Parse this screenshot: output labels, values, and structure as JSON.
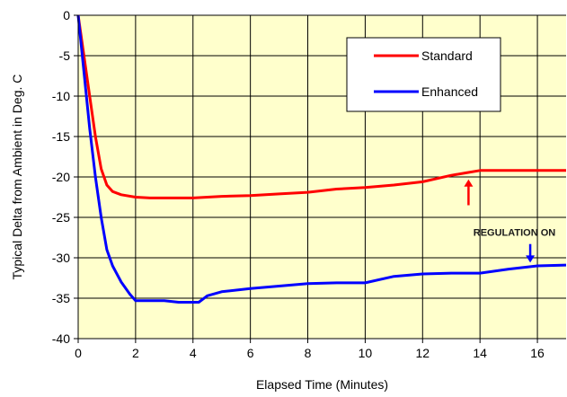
{
  "chart_data": {
    "type": "line",
    "xlabel": "Elapsed Time (Minutes)",
    "ylabel": "Typical Delta from Ambient in Deg. C",
    "xlim": [
      0,
      17
    ],
    "ylim": [
      -40,
      0
    ],
    "x_ticks": [
      0,
      2,
      4,
      6,
      8,
      10,
      12,
      14,
      16
    ],
    "y_ticks": [
      0,
      -5,
      -10,
      -15,
      -20,
      -25,
      -30,
      -35,
      -40
    ],
    "grid": true,
    "legend_position": "top-right",
    "plot_background": "#ffffcc",
    "series": [
      {
        "name": "Standard",
        "color": "#ff0000",
        "x": [
          0,
          0.2,
          0.4,
          0.6,
          0.8,
          1.0,
          1.2,
          1.5,
          2.0,
          2.5,
          3.0,
          4.0,
          5.0,
          6.0,
          7.0,
          8.0,
          9.0,
          10.0,
          11.0,
          12.0,
          13.0,
          13.5,
          14.0,
          15.0,
          16.0,
          17.0
        ],
        "values": [
          0,
          -5,
          -10,
          -15,
          -19,
          -21,
          -21.8,
          -22.2,
          -22.5,
          -22.6,
          -22.6,
          -22.6,
          -22.4,
          -22.3,
          -22.1,
          -21.9,
          -21.5,
          -21.3,
          -21,
          -20.6,
          -19.8,
          -19.5,
          -19.2,
          -19.2,
          -19.2,
          -19.2
        ]
      },
      {
        "name": "Enhanced",
        "color": "#0000ff",
        "x": [
          0,
          0.2,
          0.4,
          0.6,
          0.8,
          1.0,
          1.2,
          1.5,
          1.8,
          2.0,
          2.5,
          3.0,
          3.5,
          4.0,
          4.2,
          4.5,
          5.0,
          6.0,
          7.0,
          8.0,
          9.0,
          10.0,
          11.0,
          12.0,
          13.0,
          14.0,
          15.0,
          16.0,
          17.0
        ],
        "values": [
          0,
          -7,
          -14,
          -20,
          -25,
          -29,
          -31,
          -33,
          -34.5,
          -35.3,
          -35.3,
          -35.3,
          -35.5,
          -35.5,
          -35.5,
          -34.7,
          -34.2,
          -33.8,
          -33.5,
          -33.2,
          -33.1,
          -33.1,
          -32.3,
          -32,
          -31.9,
          -31.9,
          -31.4,
          -31,
          -30.9
        ]
      }
    ],
    "annotations": [
      {
        "text": "",
        "type": "arrow",
        "color": "#ff0000",
        "direction": "up",
        "x": 13.6,
        "y_from": -23.5,
        "y_to": -20.3
      },
      {
        "text": "REGULATION ON",
        "type": "label",
        "x": 15.2,
        "y": -27.3
      },
      {
        "text": "",
        "type": "arrow",
        "color": "#0000ff",
        "direction": "down",
        "x": 15.75,
        "y_from": -28.3,
        "y_to": -30.6
      }
    ]
  }
}
